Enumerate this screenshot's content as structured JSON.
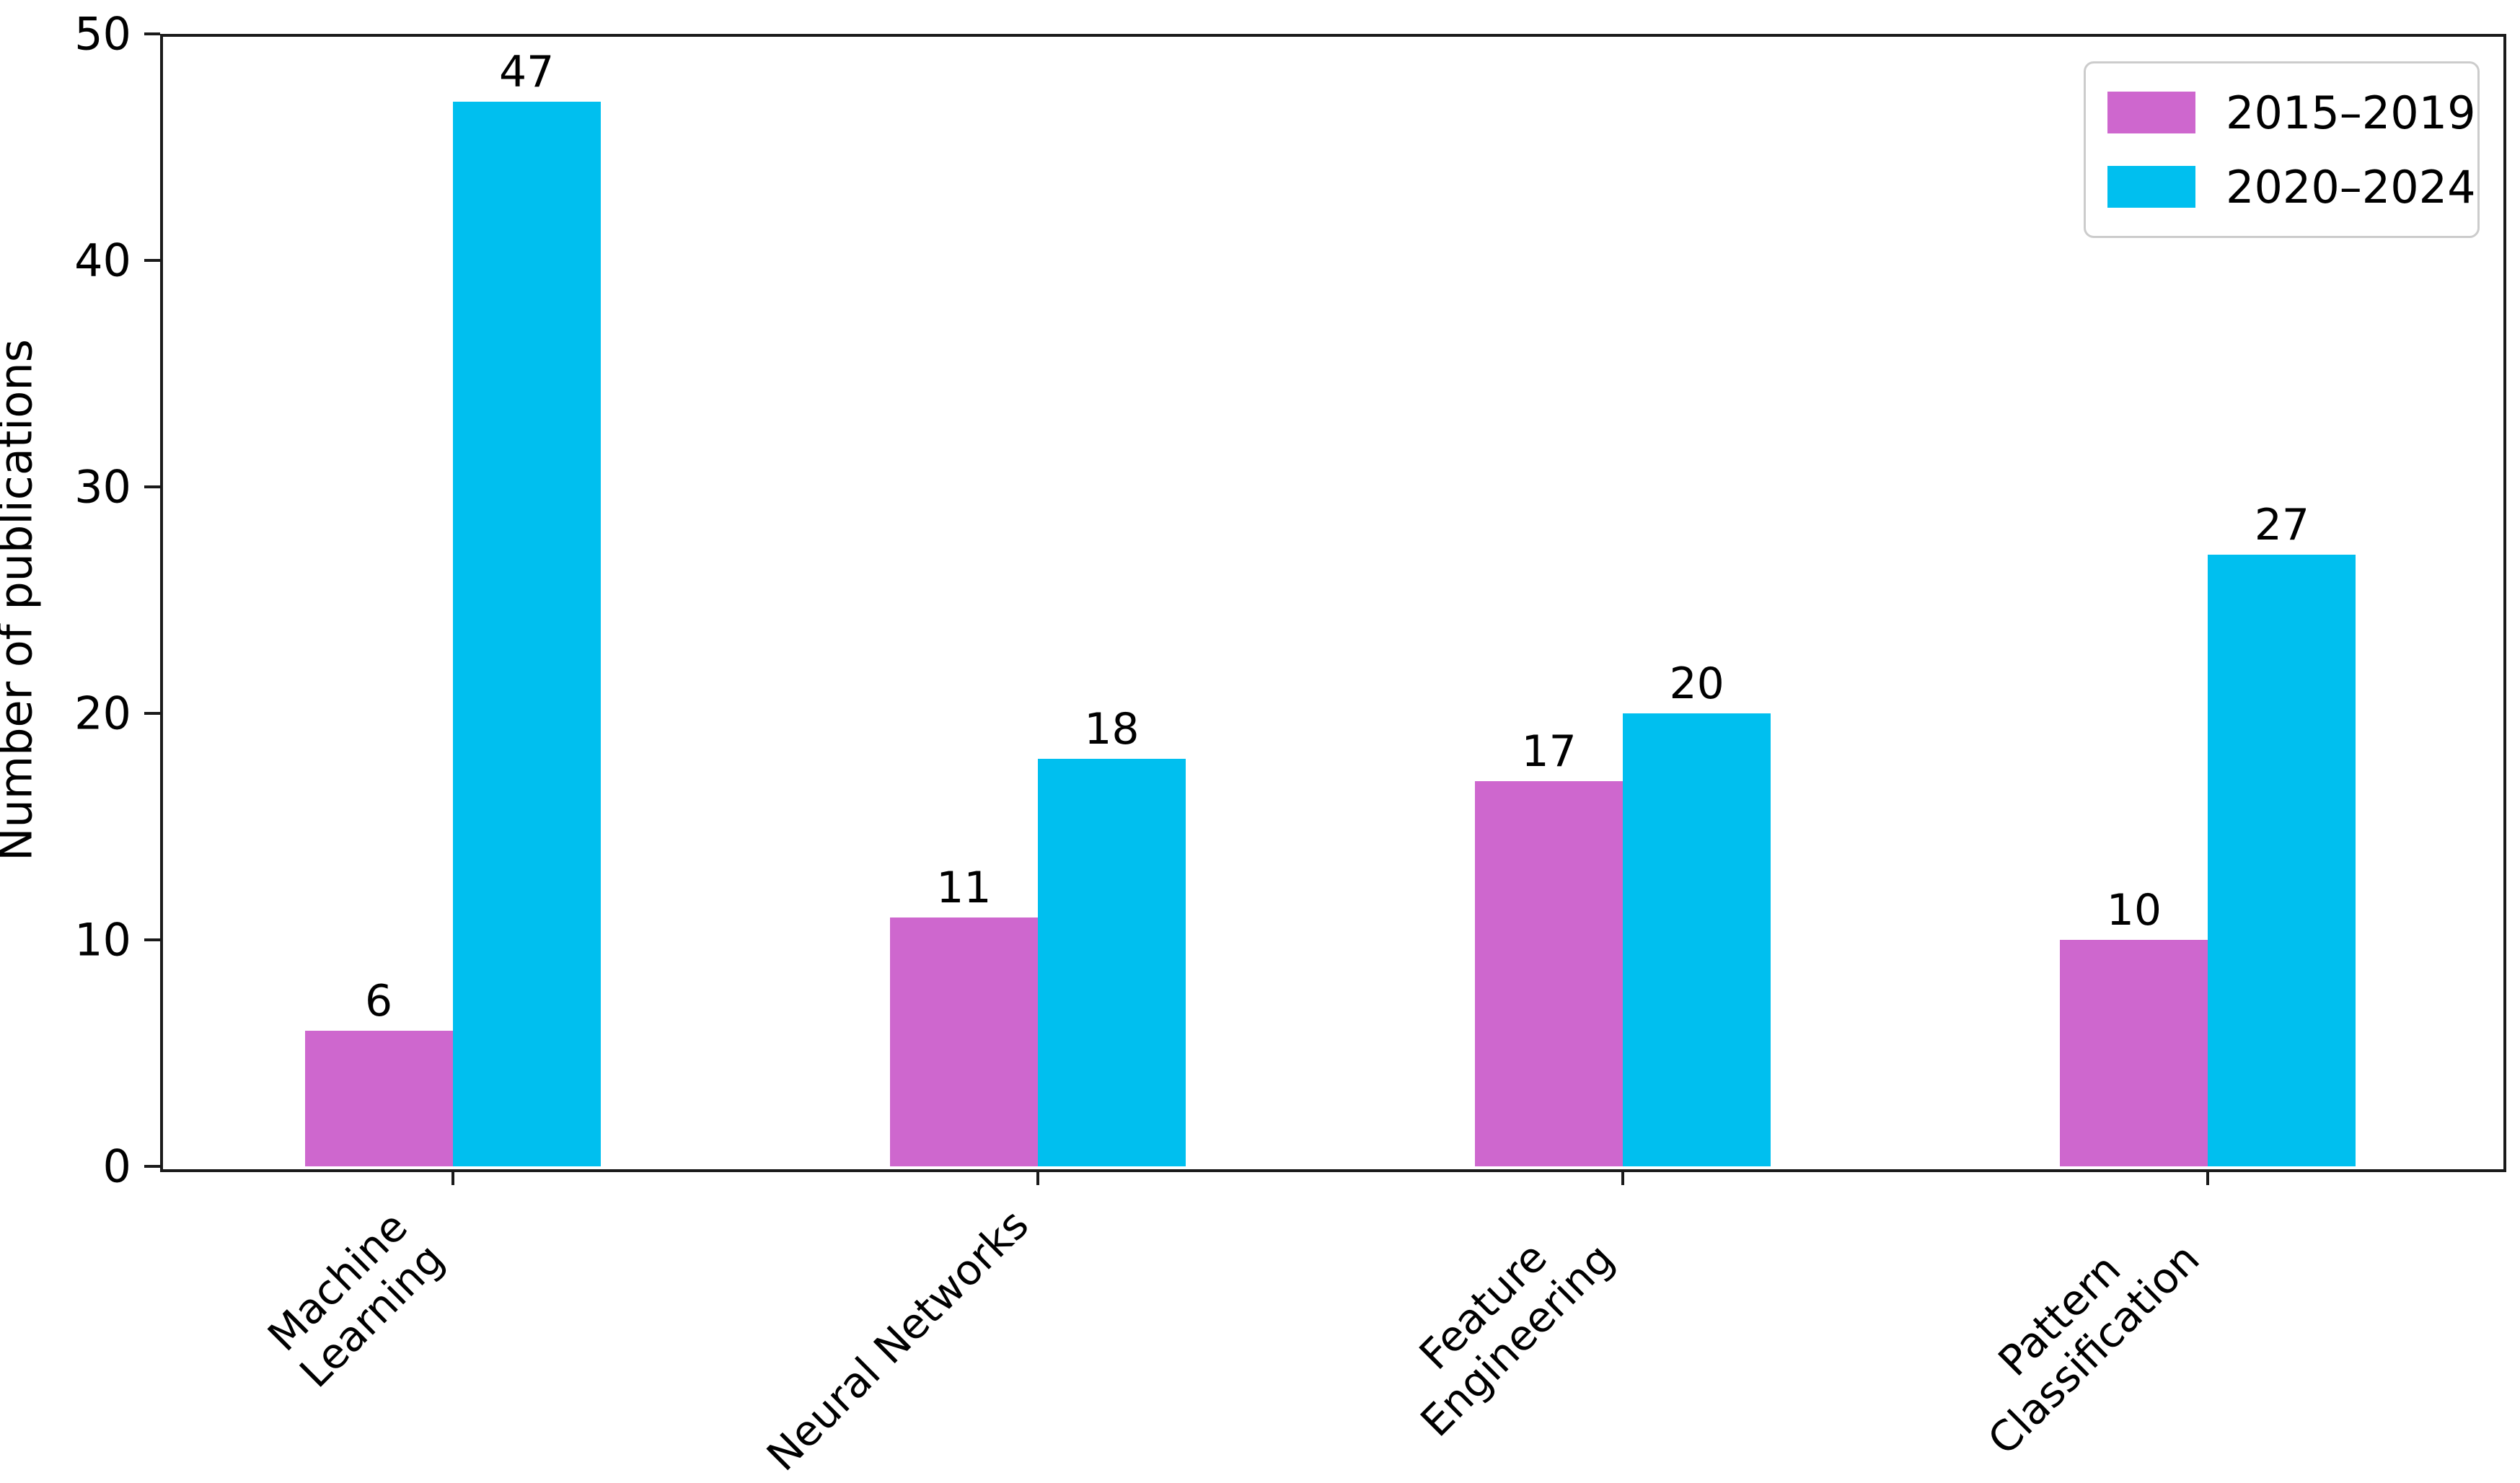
{
  "chart_data": {
    "type": "bar",
    "title": "",
    "xlabel": "",
    "ylabel": "Number of publications",
    "categories": [
      "Machine\nLearning",
      "Neural Networks",
      "Feature\nEngineering",
      "Pattern\nClassification"
    ],
    "series": [
      {
        "name": "2015–2019",
        "color": "#ce67ce",
        "values": [
          6,
          11,
          17,
          10
        ]
      },
      {
        "name": "2020–2024",
        "color": "#00bfef",
        "values": [
          47,
          18,
          20,
          27
        ]
      }
    ],
    "ylim": [
      0,
      50
    ],
    "yticks": [
      0,
      10,
      20,
      30,
      40,
      50
    ],
    "show_value_labels": true,
    "grid": false,
    "xtick_rotation_deg": 45,
    "legend": {
      "position": "upper right",
      "entries": [
        "2015–2019",
        "2020–2024"
      ]
    },
    "axis_color": "#1a1a1a",
    "legend_border_color": "#cccccc"
  }
}
